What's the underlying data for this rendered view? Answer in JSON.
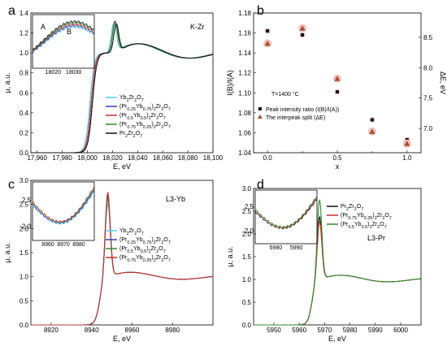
{
  "panels": [
    {
      "letter": "a",
      "type": "line",
      "annotation": "K-Zr",
      "xlabel": "E, eV",
      "ylabel": "μ, a.u.",
      "xlim": [
        17955,
        18100
      ],
      "ylim": [
        0.0,
        1.4
      ],
      "xticks": [
        "17,960",
        "17,980",
        "18,000",
        "18,020",
        "18,040",
        "18,060",
        "18,080",
        "18,100"
      ],
      "xtick_values": [
        17960,
        17980,
        18000,
        18020,
        18040,
        18060,
        18080,
        18100
      ],
      "yticks": [
        "0.0",
        "0.2",
        "0.4",
        "0.6",
        "0.8",
        "1.0",
        "1.2",
        "1.4"
      ],
      "ytick_values": [
        0.0,
        0.2,
        0.4,
        0.6,
        0.8,
        1.0,
        1.2,
        1.4
      ],
      "legend": [
        {
          "text": "Yb2Zr2O7",
          "color": "#55c8f0"
        },
        {
          "text": "(Pr0.25Yb0.75)2Zr2O7",
          "color": "#2f3fc0"
        },
        {
          "text": "(Pr0.5Yb0.5)2Zr2O7",
          "color": "#c83030"
        },
        {
          "text": "(Pr0.75Yb0.25)2Zr2O7",
          "color": "#2f8a2f"
        },
        {
          "text": "Pr2Zr2O7",
          "color": "#111111"
        }
      ],
      "inset": {
        "labels": [
          "A",
          "B"
        ],
        "xticks": [
          "18020",
          "18030"
        ]
      },
      "series": [
        {
          "name": "Yb2Zr2O7",
          "color": "#55c8f0",
          "edge": 18002,
          "peak": 18021,
          "height": 1.3
        },
        {
          "name": "(Pr0.25Yb0.75)2Zr2O7",
          "color": "#2f3fc0",
          "edge": 18003,
          "peak": 18022,
          "height": 1.31
        },
        {
          "name": "(Pr0.5Yb0.5)2Zr2O7",
          "color": "#c83030",
          "edge": 18003,
          "peak": 18022,
          "height": 1.32
        },
        {
          "name": "(Pr0.75Yb0.25)2Zr2O7",
          "color": "#2f8a2f",
          "edge": 18004,
          "peak": 18022,
          "height": 1.31
        },
        {
          "name": "Pr2Zr2O7",
          "color": "#111111",
          "edge": 18004,
          "peak": 18023,
          "height": 1.29
        }
      ]
    },
    {
      "letter": "b",
      "type": "scatter",
      "xlabel": "x",
      "ylabel": "I(B)/I(A)",
      "ylabel_right": "ΔE, eV",
      "xlim": [
        -0.1,
        1.1
      ],
      "ylim": [
        1.04,
        1.18
      ],
      "ylim_right": [
        6.6,
        8.9
      ],
      "xticks": [
        "0.0",
        "0.5",
        "1.0"
      ],
      "xtick_values": [
        0.0,
        0.5,
        1.0
      ],
      "minor_xtick_values": [
        0.25,
        0.75
      ],
      "yticks": [
        "1.04",
        "1.06",
        "1.08",
        "1.10",
        "1.12",
        "1.14",
        "1.16",
        "1.18"
      ],
      "ytick_values": [
        1.04,
        1.06,
        1.08,
        1.1,
        1.12,
        1.14,
        1.16,
        1.18
      ],
      "yticks_right": [
        "7.0",
        "7.5",
        "8.0",
        "8.5"
      ],
      "ytick_values_right": [
        7.0,
        7.5,
        8.0,
        8.5
      ],
      "annotation": "T=1400 °C",
      "legend": [
        {
          "text": "Peak intensity ratio (I(B)/I(A))",
          "marker": "square",
          "color": "#111111"
        },
        {
          "text": "The interpeak split (ΔE)",
          "marker": "triangle",
          "color": "#a0522d"
        }
      ],
      "ratio": {
        "x": [
          0.0,
          0.25,
          0.5,
          0.75,
          1.0
        ],
        "y": [
          1.162,
          1.158,
          1.101,
          1.073,
          1.053
        ]
      },
      "split": {
        "x": [
          0.0,
          0.25,
          0.5,
          0.75,
          1.0
        ],
        "y": [
          8.4,
          8.65,
          7.82,
          6.95,
          6.75
        ]
      }
    },
    {
      "letter": "c",
      "type": "line",
      "annotation": "L3-Yb",
      "xlabel": "E, eV",
      "ylabel": "μ, a.u.",
      "xlim": [
        8910,
        9000
      ],
      "ylim": [
        0.0,
        3.0
      ],
      "xticks": [
        "8920",
        "8940",
        "8960",
        "8980"
      ],
      "xtick_values": [
        8920,
        8940,
        8960,
        8980
      ],
      "yticks": [
        "0.0",
        "0.5",
        "1.0",
        "1.5",
        "2.0",
        "2.5",
        "3.0"
      ],
      "ytick_values": [
        0.0,
        0.5,
        1.0,
        1.5,
        2.0,
        2.5,
        3.0
      ],
      "legend": [
        {
          "text": "Yb2Zr2O7",
          "color": "#55c8f0"
        },
        {
          "text": "(Pr0.25Yb0.75)2Zr2O7",
          "color": "#2f3fc0"
        },
        {
          "text": "(Pr0.5Yb0.5)2Zr2O7",
          "color": "#2f8a2f"
        },
        {
          "text": "(Pr0.75Yb0.25)2Zr2O7",
          "color": "#c83030"
        }
      ],
      "inset": {
        "xticks": [
          "8960",
          "8970",
          "8980"
        ],
        "yticks": [
          "2.0",
          "2.5"
        ]
      },
      "series": [
        {
          "name": "Yb2Zr2O7",
          "color": "#55c8f0",
          "edge": 8944,
          "peak": 8948,
          "height": 2.55
        },
        {
          "name": "(Pr0.25Yb0.75)2Zr2O7",
          "color": "#2f3fc0",
          "edge": 8944,
          "peak": 8948,
          "height": 2.72
        },
        {
          "name": "(Pr0.5Yb0.5)2Zr2O7",
          "color": "#2f8a2f",
          "edge": 8944,
          "peak": 8948,
          "height": 2.65
        },
        {
          "name": "(Pr0.75Yb0.25)2Zr2O7",
          "color": "#c83030",
          "edge": 8944,
          "peak": 8948,
          "height": 2.78
        }
      ]
    },
    {
      "letter": "d",
      "type": "line",
      "annotation": "L3-Pr",
      "xlabel": "E, eV",
      "ylabel": "μ, a.u.",
      "xlim": [
        5942,
        6008
      ],
      "ylim": [
        0.0,
        3.0
      ],
      "xticks": [
        "5950",
        "5960",
        "5970",
        "5980",
        "5990",
        "6000"
      ],
      "xtick_values": [
        5950,
        5960,
        5970,
        5980,
        5990,
        6000
      ],
      "yticks": [
        "0.0",
        "0.5",
        "1.0",
        "1.5",
        "2.0",
        "2.5",
        "3.0"
      ],
      "ytick_values": [
        0.0,
        0.5,
        1.0,
        1.5,
        2.0,
        2.5,
        3.0
      ],
      "legend": [
        {
          "text": "Pr2Zr2O7",
          "color": "#111111"
        },
        {
          "text": "(Pr0.75Yb0.25)2Zr2O7",
          "color": "#c83030"
        },
        {
          "text": "(Pr0.5Yb0.5)2Zr2O7",
          "color": "#2f8a2f"
        }
      ],
      "inset": {
        "xticks": [
          "5980",
          "5990"
        ],
        "yticks": [
          "2.0",
          "2.5"
        ]
      },
      "series": [
        {
          "name": "Pr2Zr2O7",
          "color": "#111111",
          "edge": 5965,
          "peak": 5968,
          "height": 2.4
        },
        {
          "name": "(Pr0.75Yb0.25)2Zr2O7",
          "color": "#c83030",
          "edge": 5965,
          "peak": 5968,
          "height": 2.3
        },
        {
          "name": "(Pr0.5Yb0.5)2Zr2O7",
          "color": "#2f8a2f",
          "edge": 5965,
          "peak": 5968,
          "height": 2.78
        }
      ]
    }
  ]
}
